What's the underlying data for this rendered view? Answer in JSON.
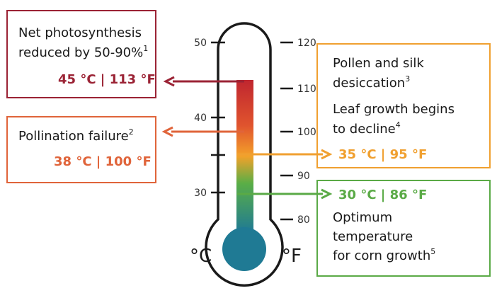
{
  "thermometer": {
    "celsius_unit": "°C",
    "fahrenheit_unit": "°F",
    "celsius_ticks": [
      "50",
      "40",
      "30"
    ],
    "fahrenheit_ticks": [
      "120",
      "110",
      "100",
      "90",
      "80"
    ]
  },
  "callouts": [
    {
      "lines": [
        "Net photosynthesis",
        "reduced by 50-90%"
      ],
      "superscript": "1",
      "value": "45 °C | 113 °F"
    },
    {
      "lines": [
        "Pollination failure"
      ],
      "superscript": "2",
      "value": "38 °C | 100 °F"
    },
    {
      "lines": [
        "Pollen and silk",
        "desiccation"
      ],
      "superscript": "3",
      "lines2": [
        "Leaf growth begins",
        "to decline"
      ],
      "superscript2": "4",
      "value": "35 °C | 95 °F"
    },
    {
      "value": "30 °C | 86 °F",
      "lines": [
        "Optimum",
        "temperature",
        "for corn growth"
      ],
      "superscript": "5"
    }
  ]
}
